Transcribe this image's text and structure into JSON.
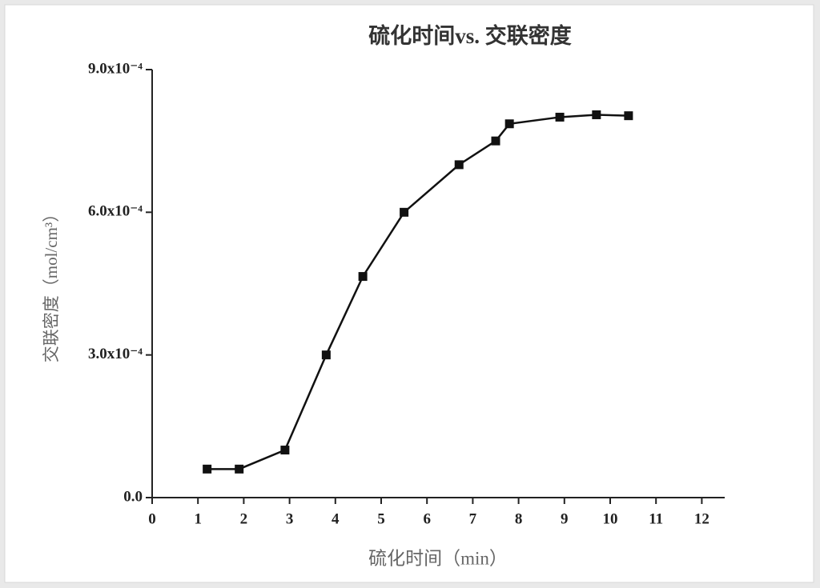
{
  "chart_data": {
    "type": "line",
    "title": "硫化时间vs. 交联密度",
    "xlabel": "硫化时间（min）",
    "ylabel": "交联密度（mol/cm³）",
    "x": [
      1.2,
      1.9,
      2.9,
      3.8,
      4.6,
      5.5,
      6.7,
      7.5,
      7.8,
      8.9,
      9.7,
      10.4
    ],
    "series": [
      {
        "name": null,
        "color": "#111111",
        "values": [
          6e-05,
          6e-05,
          0.0001,
          0.0003,
          0.000465,
          0.0006,
          0.0007,
          0.00075,
          0.000786,
          0.0008,
          0.000805,
          0.000803
        ]
      }
    ],
    "xlim": [
      0,
      12.5
    ],
    "xticks": [
      0,
      1,
      2,
      3,
      4,
      5,
      6,
      7,
      8,
      9,
      10,
      11,
      12
    ],
    "ylim": [
      0,
      0.0009
    ],
    "yticks": [
      {
        "value": 0,
        "label": "0.0"
      },
      {
        "value": 0.0003,
        "label": "3.0x10⁻⁴"
      },
      {
        "value": 0.0006,
        "label": "6.0x10⁻⁴"
      },
      {
        "value": 0.0009,
        "label": "9.0x10⁻⁴"
      }
    ],
    "grid": false
  }
}
